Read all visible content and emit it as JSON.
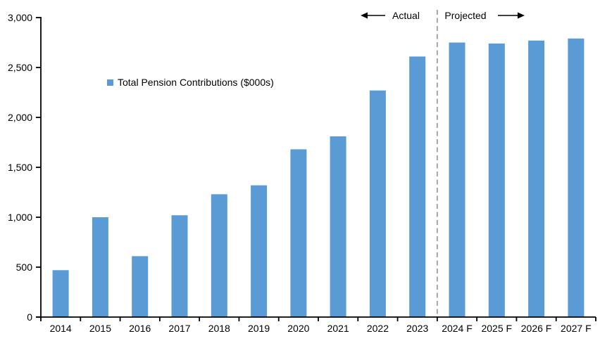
{
  "chart_data": {
    "type": "bar",
    "title": "",
    "legend_label": "Total Pension Contributions ($000s)",
    "categories": [
      "2014",
      "2015",
      "2016",
      "2017",
      "2018",
      "2019",
      "2020",
      "2021",
      "2022",
      "2023",
      "2024 F",
      "2025 F",
      "2026 F",
      "2027 F"
    ],
    "values": [
      470,
      1000,
      610,
      1020,
      1230,
      1320,
      1680,
      1810,
      2270,
      2610,
      2750,
      2740,
      2770,
      2790
    ],
    "xlabel": "",
    "ylabel": "",
    "ylim": [
      0,
      3000
    ],
    "ytick_interval": 500,
    "ytick_labels": [
      "0",
      "500",
      "1,000",
      "1,500",
      "2,000",
      "2,500",
      "3,000"
    ],
    "grid": "off",
    "legend_position": "inside-upper-left",
    "bar_color": "#5B9BD5",
    "axis_color": "#000000",
    "annotations": {
      "actual_label": "Actual",
      "projected_label": "Projected",
      "divider_between": [
        "2023",
        "2024 F"
      ],
      "divider_color": "#A6A6A6"
    }
  }
}
